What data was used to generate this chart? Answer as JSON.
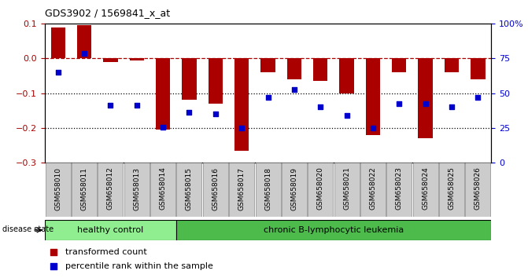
{
  "title": "GDS3902 / 1569841_x_at",
  "samples": [
    "GSM658010",
    "GSM658011",
    "GSM658012",
    "GSM658013",
    "GSM658014",
    "GSM658015",
    "GSM658016",
    "GSM658017",
    "GSM658018",
    "GSM658019",
    "GSM658020",
    "GSM658021",
    "GSM658022",
    "GSM658023",
    "GSM658024",
    "GSM658025",
    "GSM658026"
  ],
  "red_bars": [
    0.09,
    0.095,
    -0.01,
    -0.005,
    -0.205,
    -0.12,
    -0.13,
    -0.265,
    -0.04,
    -0.06,
    -0.065,
    -0.1,
    -0.22,
    -0.04,
    -0.23,
    -0.04,
    -0.06
  ],
  "blue_dots": [
    -0.04,
    0.015,
    -0.135,
    -0.135,
    -0.198,
    -0.155,
    -0.16,
    -0.2,
    -0.113,
    -0.09,
    -0.14,
    -0.165,
    -0.2,
    -0.13,
    -0.13,
    -0.14,
    -0.113
  ],
  "ylim_left": [
    -0.3,
    0.1
  ],
  "healthy_count": 5,
  "disease_label": "disease state",
  "group1_label": "healthy control",
  "group2_label": "chronic B-lymphocytic leukemia",
  "legend1": "transformed count",
  "legend2": "percentile rank within the sample",
  "red_color": "#AA0000",
  "blue_color": "#0000CC",
  "bar_width": 0.55,
  "healthy_bg": "#90EE90",
  "leukemia_bg": "#4CBB4C",
  "tick_bg": "#CCCCCC",
  "dashed_line_color": "#AA0000",
  "dotted_line_color": "#000000",
  "right_tick_vals": [
    -0.3,
    -0.2,
    -0.1,
    0.0,
    0.1
  ],
  "right_tick_labels": [
    "0",
    "25",
    "50",
    "75",
    "100%"
  ]
}
